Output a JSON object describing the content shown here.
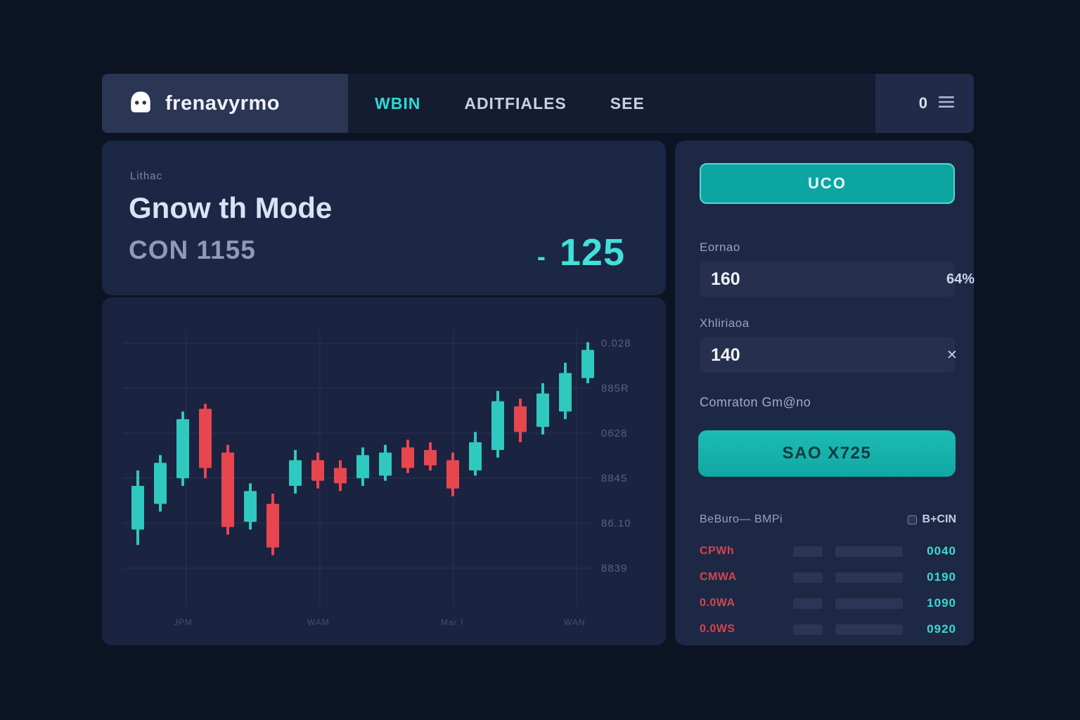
{
  "colors": {
    "accent": "#2fd8d4",
    "up": "#2fc9bf",
    "down": "#e8464f",
    "grid": "#2a3354"
  },
  "navbar": {
    "brand": "frenavyrmo",
    "items": [
      {
        "label": "WBIN"
      },
      {
        "label": "ADITFIALES"
      },
      {
        "label": "SEE"
      }
    ],
    "counter": "0"
  },
  "overview": {
    "eyebrow": "Lithac",
    "title": "Gnow th Mode",
    "subtitle": "CON 1155",
    "change_sign": "-",
    "change_value": "125"
  },
  "chart_data": {
    "type": "candlestick",
    "title": "",
    "y_tick_labels": [
      "0.028",
      "885R",
      "0628",
      "8845",
      "86.10",
      "8839"
    ],
    "x_tick_labels": [
      "JPM",
      "WAM",
      "Mar I",
      "WAN"
    ],
    "grid": true,
    "ylim": [
      0,
      100
    ],
    "up_color": "#2fc9bf",
    "down_color": "#e8464f",
    "candles": [
      {
        "o": 26,
        "h": 49,
        "l": 20,
        "c": 43
      },
      {
        "o": 36,
        "h": 55,
        "l": 33,
        "c": 52
      },
      {
        "o": 46,
        "h": 72,
        "l": 43,
        "c": 69
      },
      {
        "o": 73,
        "h": 75,
        "l": 46,
        "c": 50
      },
      {
        "o": 56,
        "h": 59,
        "l": 24,
        "c": 27
      },
      {
        "o": 29,
        "h": 44,
        "l": 26,
        "c": 41
      },
      {
        "o": 36,
        "h": 40,
        "l": 16,
        "c": 19
      },
      {
        "o": 43,
        "h": 57,
        "l": 40,
        "c": 53
      },
      {
        "o": 53,
        "h": 56,
        "l": 42,
        "c": 45
      },
      {
        "o": 50,
        "h": 53,
        "l": 41,
        "c": 44
      },
      {
        "o": 46,
        "h": 58,
        "l": 43,
        "c": 55
      },
      {
        "o": 47,
        "h": 59,
        "l": 45,
        "c": 56
      },
      {
        "o": 58,
        "h": 61,
        "l": 48,
        "c": 50
      },
      {
        "o": 57,
        "h": 60,
        "l": 49,
        "c": 51
      },
      {
        "o": 53,
        "h": 56,
        "l": 39,
        "c": 42
      },
      {
        "o": 49,
        "h": 64,
        "l": 47,
        "c": 60
      },
      {
        "o": 57,
        "h": 80,
        "l": 54,
        "c": 76
      },
      {
        "o": 74,
        "h": 77,
        "l": 60,
        "c": 64
      },
      {
        "o": 66,
        "h": 83,
        "l": 63,
        "c": 79
      },
      {
        "o": 72,
        "h": 91,
        "l": 69,
        "c": 87
      },
      {
        "o": 85,
        "h": 99,
        "l": 83,
        "c": 96
      }
    ]
  },
  "sidebar": {
    "primary_button": "UCO",
    "amount": {
      "label": "Eornao",
      "value": "160",
      "percent": "64%"
    },
    "multiplier": {
      "label": "Xhliriaoa",
      "value": "140",
      "clear": "✕"
    },
    "commission_label": "Comraton Gm@no",
    "action_button": "SAO X725",
    "table": {
      "header_left": "BeBuro— BMPi",
      "header_right": "B+CIN",
      "rows": [
        {
          "label": "CPWh",
          "value": "0040"
        },
        {
          "label": "CMWA",
          "value": "0190"
        },
        {
          "label": "0.0WA",
          "value": "1090"
        },
        {
          "label": "0.0WS",
          "value": "0920"
        }
      ]
    }
  }
}
